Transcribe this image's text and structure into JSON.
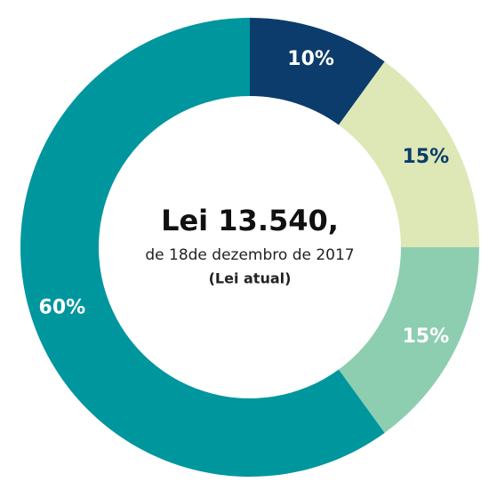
{
  "chart_data": {
    "type": "pie",
    "title": "Lei 13.540,",
    "subtitle": "de 18de dezembro de 2017",
    "note": "(Lei atual)",
    "values": [
      10,
      15,
      15,
      60
    ],
    "value_labels": [
      "10%",
      "15%",
      "15%",
      "60%"
    ],
    "colors": [
      "#0b3c6b",
      "#dde8b6",
      "#8dceb0",
      "#00969e"
    ],
    "label_colors": [
      "#ffffff",
      "#0b3c6b",
      "#ffffff",
      "#ffffff"
    ]
  }
}
